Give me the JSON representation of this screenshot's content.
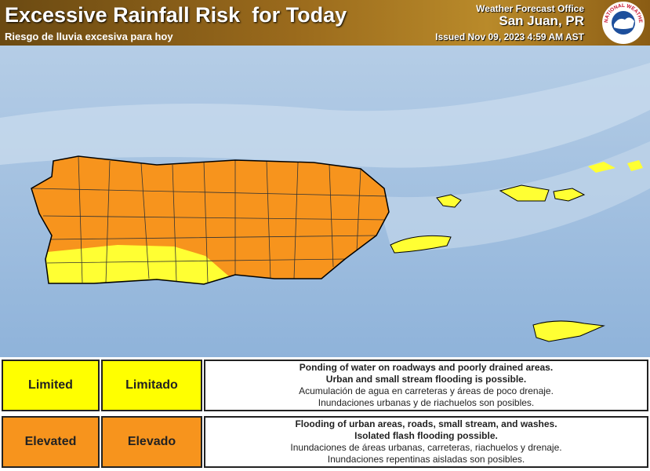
{
  "header": {
    "title": "Excessive Rainfall Risk  for Today",
    "subtitle": "Riesgo de lluvia excesiva para hoy",
    "office": "Weather Forecast Office",
    "location": "San Juan, PR",
    "issued": "Issued Nov 09, 2023 4:59 AM AST",
    "logo_text": "NATIONAL WEATHER SERVICE"
  },
  "legend": {
    "rows": [
      {
        "english": "Limited",
        "spanish": "Limitado",
        "color": "#ffff00",
        "lines": [
          "Ponding of water on roadways and poorly drained areas.",
          "Urban and small stream flooding is possible.",
          "Acumulación de agua en carreteras y áreas de poco drenaje.",
          "Inundaciones urbanas y de riachuelos son posibles."
        ]
      },
      {
        "english": "Elevated",
        "spanish": "Elevado",
        "color": "#f7941d",
        "lines": [
          "Flooding of urban areas, roads, small stream, and washes.",
          "Isolated flash flooding possible.",
          "Inundaciones de áreas urbanas, carreteras, riachuelos y drenaje.",
          "Inundaciones repentinas aisladas son posibles."
        ]
      }
    ]
  }
}
